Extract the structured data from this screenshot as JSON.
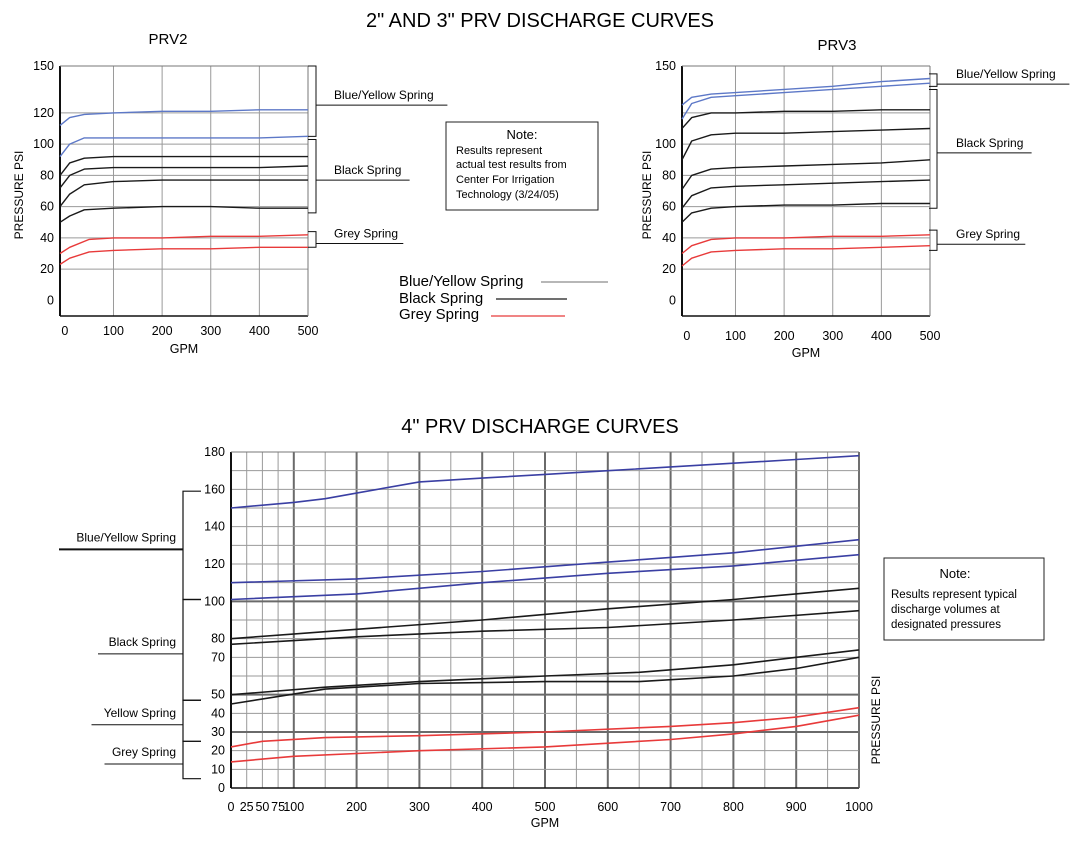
{
  "titles": {
    "top": "2\" AND 3\" PRV DISCHARGE CURVES",
    "bottom": "4\" PRV DISCHARGE CURVES"
  },
  "colors": {
    "blue": "#5d78c7",
    "blue_dark": "#3a3fa3",
    "black": "#1a1a1a",
    "red": "#e83a3a",
    "grid": "#8a8a8a"
  },
  "legend": {
    "items": [
      {
        "label": "Blue/Yellow Spring",
        "color": "#6f6f6f"
      },
      {
        "label": "Black Spring",
        "color": "#1a1a1a"
      },
      {
        "label": "Grey Spring",
        "color": "#e83a3a"
      }
    ]
  },
  "notes": {
    "top": {
      "title": "Note:",
      "lines": [
        "Results represent",
        "actual test results from",
        "Center For Irrigation",
        "Technology (3/24/05)"
      ]
    },
    "bottom": {
      "title": "Note:",
      "lines": [
        "Results represent typical",
        "discharge volumes at",
        "designated pressures"
      ]
    }
  },
  "chart_data": [
    {
      "id": "prv2",
      "type": "line",
      "title": "PRV2",
      "xlabel": "GPM",
      "ylabel": "PRESSURE PSI",
      "xlim": [
        -10,
        500
      ],
      "ylim": [
        -10,
        150
      ],
      "xticks": [
        0,
        100,
        200,
        300,
        400,
        500
      ],
      "yticks": [
        0,
        20,
        40,
        60,
        80,
        100,
        120,
        150
      ],
      "grid_x": [
        100,
        200,
        300,
        400,
        500
      ],
      "grid_y": [
        20,
        40,
        60,
        80,
        100,
        120
      ],
      "brackets": [
        {
          "label": "Blue/Yellow Spring",
          "y_top": 150,
          "y_bottom": 105
        },
        {
          "label": "Black Spring",
          "y_top": 103,
          "y_bottom": 56
        },
        {
          "label": "Grey Spring",
          "y_top": 44,
          "y_bottom": 34
        }
      ],
      "series": [
        {
          "name": "Blue/Yellow Spring",
          "color": "blue",
          "x": [
            -10,
            10,
            40,
            100,
            200,
            300,
            400,
            500
          ],
          "y": [
            112,
            117,
            119,
            120,
            121,
            121,
            122,
            122
          ]
        },
        {
          "name": "Blue/Yellow Spring",
          "color": "blue",
          "x": [
            -10,
            10,
            40,
            100,
            200,
            300,
            400,
            500
          ],
          "y": [
            92,
            100,
            104,
            104,
            104,
            104,
            104,
            105
          ]
        },
        {
          "name": "Black Spring",
          "color": "black",
          "x": [
            -10,
            10,
            40,
            100,
            200,
            300,
            400,
            500
          ],
          "y": [
            80,
            88,
            91,
            92,
            92,
            92,
            92,
            92
          ]
        },
        {
          "name": "Black Spring",
          "color": "black",
          "x": [
            -10,
            10,
            40,
            100,
            200,
            300,
            400,
            500
          ],
          "y": [
            72,
            80,
            84,
            85,
            85,
            85,
            85,
            86
          ]
        },
        {
          "name": "Black Spring",
          "color": "black",
          "x": [
            -10,
            10,
            40,
            100,
            200,
            300,
            400,
            500
          ],
          "y": [
            60,
            68,
            74,
            76,
            77,
            77,
            77,
            77
          ]
        },
        {
          "name": "Black Spring",
          "color": "black",
          "x": [
            -10,
            10,
            40,
            100,
            200,
            300,
            400,
            500
          ],
          "y": [
            50,
            54,
            58,
            59,
            60,
            60,
            59,
            59
          ]
        },
        {
          "name": "Grey Spring",
          "color": "red",
          "x": [
            -10,
            10,
            50,
            100,
            200,
            300,
            400,
            500
          ],
          "y": [
            30,
            34,
            39,
            40,
            40,
            41,
            41,
            42
          ]
        },
        {
          "name": "Grey Spring",
          "color": "red",
          "x": [
            -10,
            10,
            50,
            100,
            200,
            300,
            400,
            500
          ],
          "y": [
            23,
            27,
            31,
            32,
            33,
            33,
            34,
            34
          ]
        }
      ]
    },
    {
      "id": "prv3",
      "type": "line",
      "title": "PRV3",
      "xlabel": "GPM",
      "ylabel": "PRESSURE PSI",
      "xlim": [
        -10,
        500
      ],
      "ylim": [
        -10,
        150
      ],
      "xticks": [
        0,
        100,
        200,
        300,
        400,
        500
      ],
      "yticks": [
        0,
        20,
        40,
        60,
        80,
        100,
        150
      ],
      "grid_x": [
        100,
        200,
        300,
        400,
        500
      ],
      "grid_y": [
        20,
        40,
        60,
        80,
        100,
        120
      ],
      "brackets": [
        {
          "label": "Blue/Yellow Spring",
          "y_top": 145,
          "y_bottom": 137
        },
        {
          "label": "Black Spring",
          "y_top": 135,
          "y_bottom": 59
        },
        {
          "label": "Grey Spring",
          "y_top": 45,
          "y_bottom": 32
        }
      ],
      "series": [
        {
          "name": "Blue/Yellow Spring",
          "color": "blue",
          "x": [
            -10,
            10,
            50,
            100,
            200,
            300,
            400,
            500
          ],
          "y": [
            125,
            130,
            132,
            133,
            135,
            137,
            140,
            142
          ]
        },
        {
          "name": "Blue/Yellow Spring",
          "color": "blue",
          "x": [
            -10,
            10,
            50,
            100,
            200,
            300,
            400,
            500
          ],
          "y": [
            116,
            126,
            130,
            131,
            133,
            135,
            137,
            139
          ]
        },
        {
          "name": "Black Spring",
          "color": "black",
          "x": [
            -10,
            10,
            50,
            100,
            200,
            300,
            400,
            500
          ],
          "y": [
            110,
            117,
            120,
            120,
            121,
            121,
            122,
            122
          ]
        },
        {
          "name": "Black Spring",
          "color": "black",
          "x": [
            -10,
            10,
            50,
            100,
            200,
            300,
            400,
            500
          ],
          "y": [
            90,
            102,
            106,
            107,
            107,
            108,
            109,
            110
          ]
        },
        {
          "name": "Black Spring",
          "color": "black",
          "x": [
            -10,
            10,
            50,
            100,
            200,
            300,
            400,
            500
          ],
          "y": [
            71,
            80,
            84,
            85,
            86,
            87,
            88,
            90
          ]
        },
        {
          "name": "Black Spring",
          "color": "black",
          "x": [
            -10,
            10,
            50,
            100,
            200,
            300,
            400,
            500
          ],
          "y": [
            59,
            67,
            72,
            73,
            74,
            75,
            76,
            77
          ]
        },
        {
          "name": "Black Spring",
          "color": "black",
          "x": [
            -10,
            10,
            50,
            100,
            200,
            300,
            400,
            500
          ],
          "y": [
            50,
            56,
            59,
            60,
            61,
            61,
            62,
            62
          ]
        },
        {
          "name": "Grey Spring",
          "color": "red",
          "x": [
            -10,
            10,
            50,
            100,
            200,
            300,
            400,
            500
          ],
          "y": [
            30,
            35,
            39,
            40,
            40,
            41,
            41,
            42
          ]
        },
        {
          "name": "Grey Spring",
          "color": "red",
          "x": [
            -10,
            10,
            50,
            100,
            200,
            300,
            400,
            500
          ],
          "y": [
            22,
            27,
            31,
            32,
            33,
            33,
            34,
            35
          ]
        }
      ]
    },
    {
      "id": "prv4",
      "type": "line",
      "title": "4\" PRV DISCHARGE CURVES",
      "xlabel": "GPM",
      "ylabel": "PRESSURE PSI",
      "xlim": [
        0,
        1000
      ],
      "ylim": [
        0,
        180
      ],
      "xticks": [
        0,
        25,
        50,
        75,
        100,
        200,
        300,
        400,
        500,
        600,
        700,
        800,
        900,
        1000
      ],
      "yticks": [
        0,
        10,
        20,
        30,
        40,
        50,
        70,
        80,
        100,
        120,
        140,
        160,
        180
      ],
      "ytick_labels": [
        "0",
        "10",
        "20",
        "30",
        "40",
        "50",
        "70",
        "80",
        "100",
        "120",
        "140",
        "160",
        "180"
      ],
      "grid_x": [
        25,
        50,
        75,
        100,
        150,
        200,
        250,
        300,
        350,
        400,
        450,
        500,
        550,
        600,
        650,
        700,
        750,
        800,
        850,
        900,
        950,
        1000
      ],
      "grid_x_bold": [
        100,
        200,
        300,
        400,
        500,
        600,
        700,
        800,
        900,
        1000
      ],
      "grid_y": [
        10,
        20,
        30,
        40,
        50,
        60,
        70,
        80,
        90,
        100,
        110,
        120,
        130,
        140,
        150,
        160,
        170,
        180
      ],
      "grid_y_bold": [
        30,
        50,
        100
      ],
      "brackets": [
        {
          "label": "Blue/Yellow Spring",
          "y_top": 159,
          "y_bottom": 101
        },
        {
          "label": "Black Spring",
          "y_top": 101,
          "y_bottom": 47
        },
        {
          "label": "Yellow Spring",
          "y_top": 47,
          "y_bottom": 25
        },
        {
          "label": "Grey Spring",
          "y_top": 25,
          "y_bottom": 5
        }
      ],
      "series": [
        {
          "name": "Blue/Yellow Spring",
          "color": "blue_dark",
          "x": [
            0,
            100,
            150,
            200,
            300,
            400,
            500,
            600,
            700,
            800,
            900,
            1000
          ],
          "y": [
            150,
            153,
            155,
            158,
            164,
            166,
            168,
            170,
            172,
            174,
            176,
            178
          ]
        },
        {
          "name": "Blue/Yellow Spring",
          "color": "blue_dark",
          "x": [
            0,
            200,
            400,
            600,
            800,
            1000
          ],
          "y": [
            110,
            112,
            116,
            121,
            126,
            133
          ]
        },
        {
          "name": "Blue/Yellow Spring",
          "color": "blue_dark",
          "x": [
            0,
            200,
            400,
            600,
            800,
            1000
          ],
          "y": [
            101,
            104,
            110,
            115,
            119,
            125
          ]
        },
        {
          "name": "Black Spring",
          "color": "black",
          "x": [
            0,
            200,
            400,
            600,
            800,
            1000
          ],
          "y": [
            80,
            85,
            90,
            96,
            101,
            107
          ]
        },
        {
          "name": "Black Spring",
          "color": "black",
          "x": [
            0,
            200,
            400,
            600,
            800,
            1000
          ],
          "y": [
            77,
            81,
            84,
            86,
            90,
            95
          ]
        },
        {
          "name": "Black Spring",
          "color": "black",
          "x": [
            0,
            150,
            300,
            500,
            650,
            800,
            900,
            1000
          ],
          "y": [
            50,
            54,
            57,
            60,
            62,
            66,
            70,
            74
          ]
        },
        {
          "name": "Black Spring",
          "color": "black",
          "x": [
            0,
            150,
            300,
            500,
            650,
            800,
            900,
            1000
          ],
          "y": [
            45,
            53,
            56,
            57,
            57,
            60,
            64,
            70
          ]
        },
        {
          "name": "Grey Spring",
          "color": "red",
          "x": [
            0,
            50,
            150,
            300,
            500,
            700,
            800,
            900,
            1000
          ],
          "y": [
            22,
            25,
            27,
            28,
            30,
            33,
            35,
            38,
            43
          ]
        },
        {
          "name": "Grey Spring",
          "color": "red",
          "x": [
            0,
            100,
            300,
            500,
            700,
            800,
            900,
            1000
          ],
          "y": [
            14,
            17,
            20,
            22,
            26,
            29,
            33,
            39
          ]
        }
      ]
    }
  ]
}
